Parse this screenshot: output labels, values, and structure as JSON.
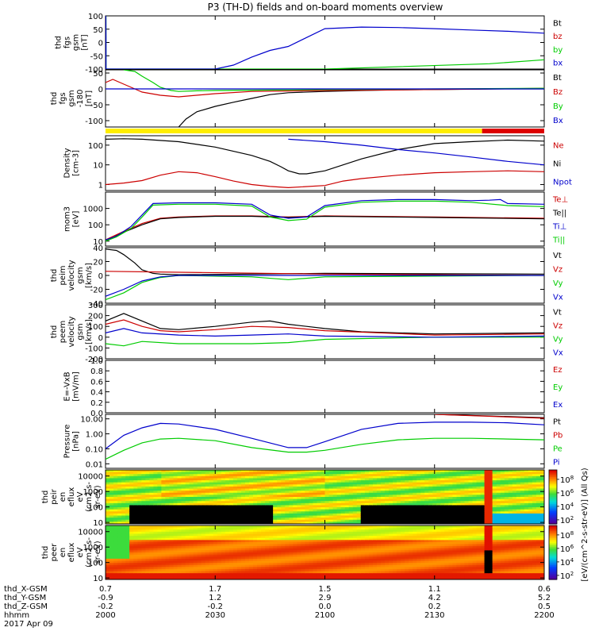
{
  "title": "P3 (TH-D) fields and on-board moments overview",
  "chart_data": [
    {
      "type": "line",
      "ylabel": [
        "thd",
        "fgs",
        "gsm",
        "[nT]"
      ],
      "ylim": [
        -100,
        100
      ],
      "yticks": [
        "100",
        "50",
        "0",
        "-50",
        "-100"
      ],
      "series": [
        {
          "name": "Bt",
          "color": "#000000",
          "x": [],
          "y": []
        },
        {
          "name": "bz",
          "color": "#cc0000",
          "x": [],
          "y": []
        },
        {
          "name": "by",
          "color": "#00cc00",
          "x": [
            2000.12,
            2000.14,
            2000.16,
            2100.1,
            2145,
            2200
          ],
          "y": [
            100,
            0,
            -100,
            -100,
            -80,
            -65
          ]
        },
        {
          "name": "bx",
          "color": "#0000cc",
          "x": [
            2000.08,
            2000.1,
            2000.12,
            2000.13,
            2000.16,
            2000.2,
            2030,
            2035,
            2040,
            2045,
            2050,
            2100,
            2110,
            2120,
            2130,
            2140,
            2150,
            2200
          ],
          "y": [
            100,
            60,
            20,
            -100,
            -100,
            -100,
            -100,
            -85,
            -55,
            -30,
            -15,
            52,
            58,
            56,
            52,
            47,
            42,
            35
          ]
        }
      ]
    },
    {
      "type": "line",
      "ylabel": [
        "thd",
        "fgs",
        "gsm",
        "-180",
        "[nT]"
      ],
      "ylim": [
        -120,
        60
      ],
      "yticks": [
        "50",
        "0",
        "-50",
        "-100"
      ],
      "series": [
        {
          "name": "Bt",
          "color": "#000000",
          "x": [
            2020,
            2022,
            2025,
            2030,
            2035,
            2040,
            2045,
            2050,
            2100,
            2110,
            2120,
            2130,
            2140,
            2150,
            2200
          ],
          "y": [
            -120,
            -95,
            -72,
            -55,
            -42,
            -30,
            -18,
            -12,
            -8,
            -5,
            -3,
            -2,
            -1,
            0,
            0
          ]
        },
        {
          "name": "Bz",
          "color": "#cc0000",
          "x": [
            2000,
            2002,
            2005,
            2008,
            2010,
            2015,
            2020,
            2030,
            2040,
            2100,
            2130,
            2200
          ],
          "y": [
            20,
            30,
            15,
            0,
            -10,
            -20,
            -25,
            -15,
            -8,
            -5,
            -2,
            2
          ]
        },
        {
          "name": "By",
          "color": "#00cc00",
          "x": [
            2005,
            2008,
            2010,
            2013,
            2015,
            2018,
            2020,
            2025,
            2030,
            2040,
            2100,
            2130,
            2200
          ],
          "y": [
            60,
            55,
            40,
            20,
            5,
            -5,
            -8,
            -6,
            -5,
            -4,
            -2,
            0,
            2
          ]
        },
        {
          "name": "Bx",
          "color": "#0000cc",
          "x": [
            2000,
            2200
          ],
          "y": [
            0,
            0
          ]
        }
      ]
    },
    {
      "type": "line",
      "ylabel": [
        "Density",
        "[cm-3]"
      ],
      "yscale": "log",
      "ylim": [
        0.5,
        300
      ],
      "yticks": [
        "100",
        "10",
        "1"
      ],
      "series": [
        {
          "name": "Ne",
          "color": "#cc0000",
          "x": [
            2000,
            2005,
            2010,
            2015,
            2020,
            2025,
            2030,
            2035,
            2040,
            2045,
            2050,
            2100,
            2105,
            2110,
            2120,
            2130,
            2140,
            2150,
            2200
          ],
          "y": [
            1,
            1.2,
            1.6,
            3,
            4.5,
            4,
            2.5,
            1.5,
            1,
            0.8,
            0.7,
            0.9,
            1.5,
            2,
            3,
            4,
            4.5,
            5,
            4.5
          ]
        },
        {
          "name": "Ni",
          "color": "#000000",
          "x": [
            2000,
            2005,
            2010,
            2020,
            2030,
            2040,
            2045,
            2048,
            2050,
            2053,
            2055,
            2100,
            2110,
            2120,
            2130,
            2140,
            2150,
            2200
          ],
          "y": [
            200,
            210,
            200,
            150,
            80,
            30,
            15,
            8,
            5,
            3.5,
            3.5,
            5,
            20,
            60,
            120,
            150,
            180,
            160
          ]
        },
        {
          "name": "Npot",
          "color": "#0000cc",
          "x": [
            2050,
            2100,
            2110,
            2120,
            2130,
            2140,
            2150,
            2200
          ],
          "y": [
            200,
            150,
            100,
            60,
            40,
            25,
            15,
            10
          ]
        }
      ]
    },
    {
      "type": "line",
      "ylabel": [
        "mom3",
        "[eV]"
      ],
      "yscale": "log",
      "ylim": [
        5,
        10000
      ],
      "yticks": [
        "1000",
        "100",
        "10"
      ],
      "series": [
        {
          "name": "Te⊥",
          "color": "#cc0000",
          "x": [
            2000,
            2005,
            2010,
            2015,
            2020,
            2030,
            2040,
            2050,
            2100,
            2130,
            2200
          ],
          "y": [
            12,
            40,
            120,
            250,
            300,
            350,
            350,
            300,
            350,
            300,
            250
          ]
        },
        {
          "name": "Te||",
          "color": "#000000",
          "x": [
            2000,
            2005,
            2010,
            2015,
            2020,
            2030,
            2040,
            2050,
            2100,
            2130,
            2200
          ],
          "y": [
            10,
            35,
            100,
            230,
            280,
            330,
            330,
            280,
            330,
            280,
            230
          ]
        },
        {
          "name": "Ti⊥",
          "color": "#0000cc",
          "x": [
            2000,
            2003,
            2007,
            2010,
            2013,
            2020,
            2030,
            2040,
            2045,
            2050,
            2055,
            2100,
            2110,
            2120,
            2130,
            2140,
            2145,
            2148,
            2150,
            2200
          ],
          "y": [
            12,
            20,
            80,
            400,
            2000,
            2200,
            2200,
            1800,
            400,
            250,
            300,
            1500,
            3000,
            3500,
            3500,
            3000,
            3200,
            3500,
            2000,
            1800
          ]
        },
        {
          "name": "Ti||",
          "color": "#00cc00",
          "x": [
            2000,
            2003,
            2007,
            2010,
            2013,
            2020,
            2030,
            2040,
            2045,
            2050,
            2055,
            2100,
            2110,
            2120,
            2130,
            2140,
            2150,
            2200
          ],
          "y": [
            10,
            18,
            60,
            300,
            1600,
            1800,
            1800,
            1400,
            300,
            180,
            220,
            1200,
            2400,
            2800,
            2800,
            2400,
            1500,
            1300
          ]
        }
      ]
    },
    {
      "type": "line",
      "ylabel": [
        "thd",
        "peim",
        "velocity",
        "gsm",
        "[km/s]"
      ],
      "ylim": [
        -40,
        40
      ],
      "yticks": [
        "40",
        "20",
        "0",
        "-20",
        "-40"
      ],
      "series": [
        {
          "name": "Vt",
          "color": "#000000",
          "x": [
            2000,
            2003,
            2005,
            2008,
            2010,
            2013,
            2015,
            2020,
            2100,
            2200
          ],
          "y": [
            38,
            36,
            30,
            18,
            8,
            3,
            2,
            1,
            3,
            2
          ]
        },
        {
          "name": "Vz",
          "color": "#cc0000",
          "x": [
            2000,
            2100,
            2200
          ],
          "y": [
            6,
            2,
            0
          ]
        },
        {
          "name": "Vy",
          "color": "#00cc00",
          "x": [
            2000,
            2005,
            2010,
            2015,
            2020,
            2040,
            2050,
            2100,
            2200
          ],
          "y": [
            -35,
            -25,
            -10,
            -3,
            0,
            -2,
            -6,
            -2,
            0
          ]
        },
        {
          "name": "Vx",
          "color": "#0000cc",
          "x": [
            2000,
            2005,
            2010,
            2015,
            2020,
            2100,
            2200
          ],
          "y": [
            -30,
            -20,
            -8,
            -2,
            0,
            0,
            0
          ]
        }
      ]
    },
    {
      "type": "line",
      "ylabel": [
        "thd",
        "peem",
        "velocity",
        "gsm",
        "[km/s]"
      ],
      "ylim": [
        -200,
        300
      ],
      "yticks": [
        "300",
        "200",
        "100",
        "0",
        "-100",
        "-200"
      ],
      "series": [
        {
          "name": "Vt",
          "color": "#000000",
          "x": [
            2000,
            2005,
            2010,
            2015,
            2020,
            2030,
            2040,
            2045,
            2050,
            2100,
            2110,
            2130,
            2200
          ],
          "y": [
            150,
            220,
            150,
            80,
            70,
            100,
            140,
            150,
            120,
            80,
            50,
            30,
            40
          ]
        },
        {
          "name": "Vz",
          "color": "#cc0000",
          "x": [
            2000,
            2005,
            2010,
            2015,
            2020,
            2030,
            2040,
            2050,
            2100,
            2130,
            2200
          ],
          "y": [
            120,
            160,
            100,
            60,
            50,
            70,
            100,
            90,
            60,
            20,
            30
          ]
        },
        {
          "name": "Vy",
          "color": "#00cc00",
          "x": [
            2000,
            2005,
            2010,
            2020,
            2030,
            2040,
            2050,
            2100,
            2130,
            2200
          ],
          "y": [
            -60,
            -80,
            -40,
            -60,
            -60,
            -60,
            -50,
            -20,
            0,
            0
          ]
        },
        {
          "name": "Vx",
          "color": "#0000cc",
          "x": [
            2000,
            2005,
            2010,
            2020,
            2030,
            2040,
            2050,
            2100,
            2130,
            2200
          ],
          "y": [
            40,
            80,
            40,
            20,
            10,
            20,
            30,
            10,
            0,
            10
          ]
        }
      ]
    },
    {
      "type": "line",
      "ylabel": [
        "E=-VxB",
        "[mV/m]"
      ],
      "ylim": [
        0,
        1
      ],
      "yticks": [
        "1.0",
        "0.8",
        "0.6",
        "0.4",
        "0.2",
        "0.0"
      ],
      "series": [
        {
          "name": "Ez",
          "color": "#cc0000",
          "x": [],
          "y": []
        },
        {
          "name": "Ey",
          "color": "#00cc00",
          "x": [],
          "y": []
        },
        {
          "name": "Ex",
          "color": "#0000cc",
          "x": [],
          "y": []
        }
      ]
    },
    {
      "type": "line",
      "ylabel": [
        "Pressure",
        "[nPa]"
      ],
      "yscale": "log",
      "ylim": [
        0.005,
        20
      ],
      "yticks": [
        "10.00",
        "1.00",
        "0.10",
        "0.01"
      ],
      "series": [
        {
          "name": "Pt",
          "color": "#000000",
          "x": [
            2130,
            2200
          ],
          "y": [
            20,
            12
          ]
        },
        {
          "name": "Pb",
          "color": "#cc0000",
          "x": [
            2130,
            2200
          ],
          "y": [
            20,
            11
          ]
        },
        {
          "name": "Pe",
          "color": "#00cc00",
          "x": [
            2000,
            2005,
            2010,
            2015,
            2020,
            2030,
            2040,
            2050,
            2055,
            2100,
            2110,
            2120,
            2130,
            2140,
            2150,
            2200
          ],
          "y": [
            0.02,
            0.08,
            0.25,
            0.45,
            0.5,
            0.35,
            0.12,
            0.06,
            0.06,
            0.08,
            0.2,
            0.4,
            0.5,
            0.5,
            0.45,
            0.4
          ]
        },
        {
          "name": "Pi",
          "color": "#0000cc",
          "x": [
            2000,
            2005,
            2010,
            2015,
            2020,
            2030,
            2040,
            2050,
            2055,
            2100,
            2110,
            2120,
            2130,
            2140,
            2150,
            2200
          ],
          "y": [
            0.1,
            0.8,
            2.5,
            5,
            4.5,
            2,
            0.5,
            0.12,
            0.12,
            0.3,
            2,
            5,
            6,
            6,
            5.5,
            4
          ]
        }
      ]
    },
    {
      "type": "heatmap",
      "ylabel": [
        "thd",
        "peir",
        "en",
        "eflux",
        "eV",
        "(cm2-s-",
        "sr-eV)"
      ],
      "yscale": "log",
      "ylim": [
        8,
        25000
      ],
      "yticks": [
        "10000",
        "1000",
        "100",
        "10"
      ],
      "colorbar_ticks": [
        "10^8",
        "10^6",
        "10^4",
        "10^2"
      ]
    },
    {
      "type": "heatmap",
      "ylabel": [
        "thd",
        "peer",
        "en",
        "eflux",
        "eV",
        "(cm2-s-",
        "sr-eV)"
      ],
      "yscale": "log",
      "ylim": [
        8,
        25000
      ],
      "yticks": [
        "10000",
        "1000",
        "100",
        "10"
      ],
      "colorbar_ticks": [
        "10^8",
        "10^6",
        "10^4",
        "10^2"
      ]
    }
  ],
  "colorbar_label": "[eV/(cm^2-s-str-eV)] (All Qs)",
  "ephemeris": {
    "labels": [
      "thd_X-GSM",
      "thd_Y-GSM",
      "thd_Z-GSM",
      "hhmm",
      "2017 Apr 09"
    ],
    "x_gsm": [
      "0.7",
      "1.7",
      "1.5",
      "1.1",
      "0.6"
    ],
    "y_gsm": [
      "-0.9",
      "1.2",
      "2.9",
      "4.2",
      "5.2"
    ],
    "z_gsm": [
      "-0.2",
      "-0.2",
      "0.0",
      "0.2",
      "0.5"
    ],
    "hhmm": [
      "2000",
      "2030",
      "2100",
      "2130",
      "2200"
    ]
  }
}
